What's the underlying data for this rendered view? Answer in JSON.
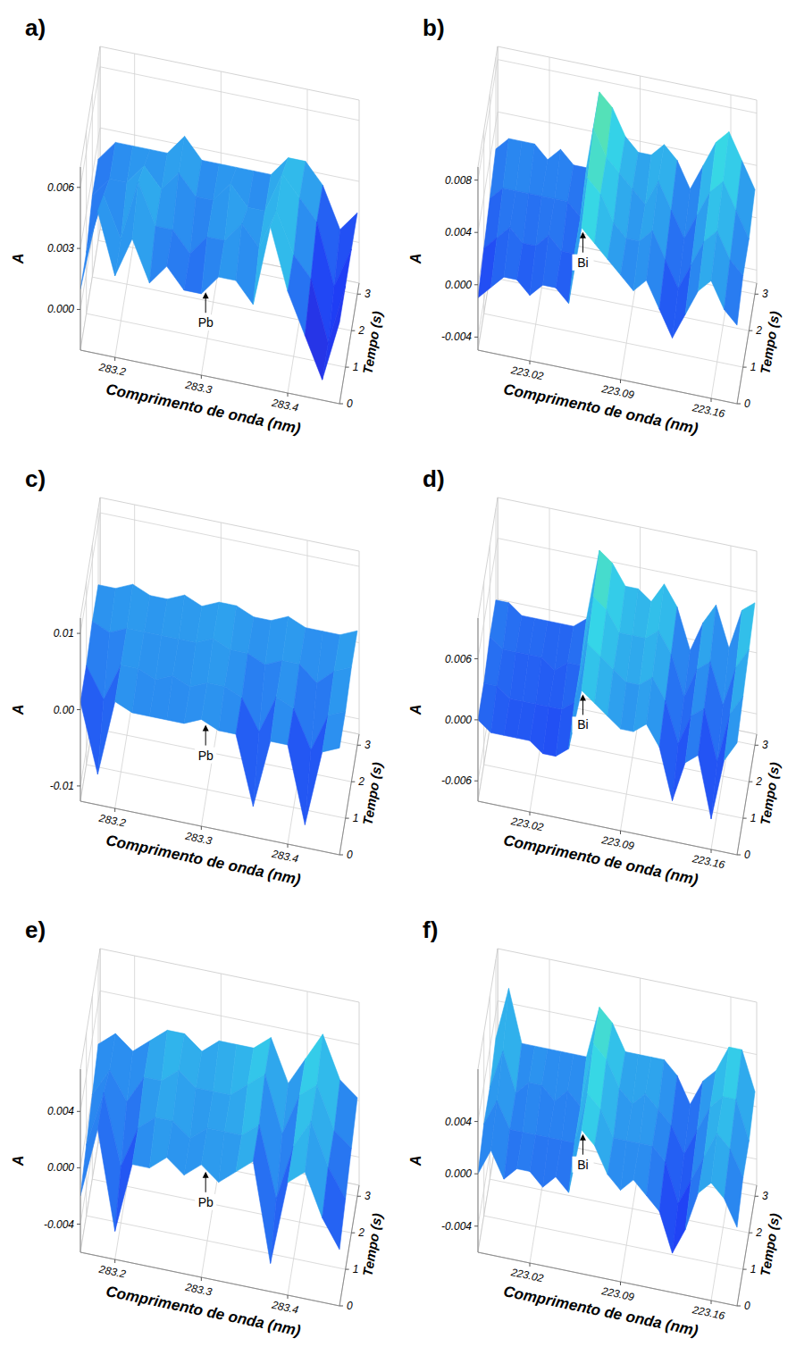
{
  "chart_data": [
    {
      "type": "surface",
      "title": "a)",
      "x_label": "Comprimento de onda (nm)",
      "y_label": "Tempo (s)",
      "z_label": "A",
      "x": [
        283.16,
        283.18,
        283.2,
        283.22,
        283.24,
        283.26,
        283.28,
        283.3,
        283.32,
        283.34,
        283.36,
        283.38,
        283.4,
        283.42,
        283.44,
        283.46
      ],
      "y": [
        0,
        1,
        2,
        3
      ],
      "z": [
        [
          0.001,
          0.005,
          0.002,
          0.004,
          0.002,
          0.003,
          0.002,
          0.002,
          0.003,
          0.003,
          0.002,
          0.006,
          0.003,
          0.001,
          -0.001,
          0.002
        ],
        [
          0.001,
          0.004,
          0.002,
          0.005,
          0.003,
          0.003,
          0.002,
          0.003,
          0.003,
          0.004,
          0.003,
          0.005,
          0.003,
          0.002,
          -0.001,
          0.002
        ],
        [
          0.002,
          0.003,
          0.003,
          0.004,
          0.003,
          0.004,
          0.003,
          0.003,
          0.004,
          0.003,
          0.003,
          0.005,
          0.004,
          0.003,
          0.0,
          0.002
        ],
        [
          0.002,
          0.003,
          0.003,
          0.003,
          0.003,
          0.004,
          0.003,
          0.003,
          0.003,
          0.003,
          0.003,
          0.004,
          0.004,
          0.003,
          0.001,
          0.002
        ]
      ],
      "xlim": [
        283.16,
        283.46
      ],
      "xticks": [
        283.2,
        283.3,
        283.4
      ],
      "ylim": [
        0,
        3.3
      ],
      "yticks": [
        0,
        1,
        2,
        3
      ],
      "zlim": [
        -0.002,
        0.007
      ],
      "zticks": [
        {
          "value": 0,
          "label": "0.000"
        },
        0.003,
        0.006
      ],
      "annotations": [
        {
          "text": "Pb",
          "x": 283.305
        }
      ]
    },
    {
      "type": "surface",
      "title": "b)",
      "x_label": "Comprimento de onda (nm)",
      "y_label": "Tempo (s)",
      "z_label": "A",
      "x": [
        222.98,
        222.99,
        223,
        223.01,
        223.02,
        223.03,
        223.04,
        223.05,
        223.06,
        223.07,
        223.08,
        223.09,
        223.1,
        223.11,
        223.12,
        223.13,
        223.14,
        223.15,
        223.16,
        223.17,
        223.18
      ],
      "y": [
        0,
        1,
        2,
        3
      ],
      "z": [
        [
          -0.001,
          0.0,
          0.001,
          0.001,
          0.0,
          0.001,
          0.001,
          0.0,
          0.006,
          0.005,
          0.004,
          0.003,
          0.002,
          0.003,
          0.001,
          -0.001,
          0.001,
          0.003,
          0.004,
          0.002,
          0.001
        ],
        [
          0.0,
          0.001,
          0.002,
          0.001,
          0.001,
          0.002,
          0.001,
          0.001,
          0.007,
          0.006,
          0.004,
          0.003,
          0.003,
          0.004,
          0.002,
          0.0,
          0.002,
          0.004,
          0.005,
          0.003,
          0.002
        ],
        [
          0.001,
          0.002,
          0.002,
          0.002,
          0.002,
          0.002,
          0.002,
          0.001,
          0.008,
          0.006,
          0.005,
          0.004,
          0.003,
          0.005,
          0.003,
          0.001,
          0.003,
          0.005,
          0.006,
          0.004,
          0.002
        ],
        [
          0.002,
          0.003,
          0.003,
          0.003,
          0.002,
          0.003,
          0.002,
          0.002,
          0.008,
          0.007,
          0.005,
          0.004,
          0.004,
          0.005,
          0.004,
          0.002,
          0.004,
          0.006,
          0.007,
          0.005,
          0.003
        ]
      ],
      "xlim": [
        222.98,
        223.18
      ],
      "xticks": [
        223.02,
        223.09,
        223.16
      ],
      "ylim": [
        0,
        3.3
      ],
      "yticks": [
        0,
        1,
        2,
        3
      ],
      "zlim": [
        -0.005,
        0.009
      ],
      "zticks": [
        -0.004,
        {
          "value": 0,
          "label": "0.000"
        },
        0.004,
        0.008
      ],
      "annotations": [
        {
          "text": "Bi",
          "x": 223.061
        }
      ]
    },
    {
      "type": "surface",
      "title": "c)",
      "x_label": "Comprimento de onda (nm)",
      "y_label": "Tempo (s)",
      "z_label": "A",
      "x": [
        283.16,
        283.18,
        283.2,
        283.22,
        283.24,
        283.26,
        283.28,
        283.3,
        283.32,
        283.34,
        283.36,
        283.38,
        283.4,
        283.42,
        283.44,
        283.46
      ],
      "y": [
        0,
        1,
        2,
        3
      ],
      "z": [
        [
          0.001,
          -0.008,
          0.002,
          0.001,
          0.001,
          0.001,
          0.001,
          0.002,
          0.001,
          0.001,
          -0.008,
          0.001,
          0.001,
          -0.009,
          0.001,
          0.002
        ],
        [
          0.001,
          -0.003,
          0.002,
          0.002,
          0.001,
          0.002,
          0.001,
          0.002,
          0.002,
          0.001,
          -0.003,
          0.002,
          0.001,
          -0.004,
          0.001,
          0.002
        ],
        [
          0.002,
          0.001,
          0.002,
          0.002,
          0.002,
          0.002,
          0.002,
          0.003,
          0.002,
          0.002,
          0.001,
          0.002,
          0.002,
          0.0,
          0.002,
          0.003
        ],
        [
          0.002,
          0.002,
          0.003,
          0.002,
          0.002,
          0.003,
          0.002,
          0.003,
          0.003,
          0.002,
          0.002,
          0.003,
          0.002,
          0.002,
          0.002,
          0.003
        ]
      ],
      "xlim": [
        283.16,
        283.46
      ],
      "xticks": [
        283.2,
        283.3,
        283.4
      ],
      "ylim": [
        0,
        3.3
      ],
      "yticks": [
        0,
        1,
        2,
        3
      ],
      "zlim": [
        -0.012,
        0.012
      ],
      "zticks": [
        -0.01,
        {
          "value": 0,
          "label": "0.00"
        },
        0.01
      ],
      "annotations": [
        {
          "text": "Pb",
          "x": 283.305
        }
      ]
    },
    {
      "type": "surface",
      "title": "d)",
      "x_label": "Comprimento de onda (nm)",
      "y_label": "Tempo (s)",
      "z_label": "A",
      "x": [
        222.98,
        222.99,
        223,
        223.01,
        223.02,
        223.03,
        223.04,
        223.05,
        223.06,
        223.07,
        223.08,
        223.09,
        223.1,
        223.11,
        223.12,
        223.13,
        223.14,
        223.15,
        223.16,
        223.17,
        223.18
      ],
      "y": [
        0,
        1,
        2,
        3
      ],
      "z": [
        [
          0.0,
          -0.001,
          -0.001,
          -0.001,
          -0.001,
          -0.002,
          -0.002,
          -0.001,
          0.005,
          0.004,
          0.003,
          0.002,
          0.002,
          0.003,
          0.001,
          -0.004,
          0.0,
          0.001,
          -0.005,
          0.001,
          0.003
        ],
        [
          0.0,
          0.0,
          -0.001,
          -0.001,
          -0.001,
          -0.001,
          -0.001,
          0.0,
          0.006,
          0.005,
          0.004,
          0.003,
          0.003,
          0.004,
          0.002,
          -0.002,
          0.001,
          0.002,
          -0.003,
          0.002,
          0.004
        ],
        [
          0.001,
          0.0,
          0.0,
          0.0,
          0.0,
          -0.001,
          0.0,
          0.0,
          0.007,
          0.006,
          0.004,
          0.004,
          0.004,
          0.005,
          0.003,
          -0.001,
          0.002,
          0.003,
          -0.001,
          0.003,
          0.005
        ],
        [
          0.001,
          0.001,
          0.0,
          0.0,
          0.0,
          0.0,
          0.0,
          0.001,
          0.008,
          0.007,
          0.005,
          0.005,
          0.004,
          0.006,
          0.004,
          0.0,
          0.003,
          0.005,
          0.001,
          0.005,
          0.006
        ]
      ],
      "xlim": [
        222.98,
        223.18
      ],
      "xticks": [
        223.02,
        223.09,
        223.16
      ],
      "ylim": [
        0,
        3.3
      ],
      "yticks": [
        0,
        1,
        2,
        3
      ],
      "zlim": [
        -0.008,
        0.01
      ],
      "zticks": [
        -0.006,
        {
          "value": 0,
          "label": "0.000"
        },
        0.006
      ],
      "annotations": [
        {
          "text": "Bi",
          "x": 223.061
        }
      ]
    },
    {
      "type": "surface",
      "title": "e)",
      "x_label": "Comprimento de onda (nm)",
      "y_label": "Tempo (s)",
      "z_label": "A",
      "x": [
        283.16,
        283.18,
        283.2,
        283.22,
        283.24,
        283.26,
        283.28,
        283.3,
        283.32,
        283.34,
        283.36,
        283.38,
        283.4,
        283.42,
        283.44,
        283.46
      ],
      "y": [
        0,
        1,
        2,
        3
      ],
      "z": [
        [
          -0.002,
          0.003,
          -0.004,
          0.001,
          0.001,
          0.002,
          0.001,
          0.002,
          0.001,
          0.002,
          0.003,
          -0.004,
          0.002,
          0.003,
          0.0,
          -0.002
        ],
        [
          -0.001,
          0.003,
          -0.002,
          0.001,
          0.002,
          0.002,
          0.001,
          0.002,
          0.002,
          0.002,
          0.003,
          -0.002,
          0.002,
          0.004,
          0.001,
          -0.001
        ],
        [
          0.0,
          0.002,
          0.0,
          0.002,
          0.002,
          0.003,
          0.002,
          0.002,
          0.002,
          0.003,
          0.004,
          0.0,
          0.003,
          0.004,
          0.001,
          0.0
        ],
        [
          0.001,
          0.002,
          0.001,
          0.002,
          0.003,
          0.003,
          0.002,
          0.003,
          0.003,
          0.003,
          0.004,
          0.001,
          0.003,
          0.005,
          0.002,
          0.001
        ]
      ],
      "xlim": [
        283.16,
        283.46
      ],
      "xticks": [
        283.2,
        283.3,
        283.4
      ],
      "ylim": [
        0,
        3.3
      ],
      "yticks": [
        0,
        1,
        2,
        3
      ],
      "zlim": [
        -0.006,
        0.007
      ],
      "zticks": [
        -0.004,
        {
          "value": 0,
          "label": "0.000"
        },
        0.004
      ],
      "annotations": [
        {
          "text": "Pb",
          "x": 283.305
        }
      ]
    },
    {
      "type": "surface",
      "title": "f)",
      "x_label": "Comprimento de onda (nm)",
      "y_label": "Tempo (s)",
      "z_label": "A",
      "x": [
        222.98,
        222.99,
        223,
        223.01,
        223.02,
        223.03,
        223.04,
        223.05,
        223.06,
        223.07,
        223.08,
        223.09,
        223.1,
        223.11,
        223.12,
        223.13,
        223.14,
        223.15,
        223.16,
        223.17,
        223.18
      ],
      "y": [
        0,
        1,
        2,
        3
      ],
      "z": [
        [
          0.0,
          0.002,
          0.0,
          0.001,
          0.001,
          0.0,
          0.001,
          0.0,
          0.005,
          0.004,
          0.002,
          0.001,
          0.002,
          0.001,
          0.0,
          -0.003,
          -0.001,
          0.002,
          0.003,
          0.002,
          0.0
        ],
        [
          0.001,
          0.003,
          0.001,
          0.001,
          0.001,
          0.001,
          0.001,
          0.001,
          0.005,
          0.004,
          0.002,
          0.002,
          0.002,
          0.002,
          0.001,
          -0.002,
          0.0,
          0.002,
          0.004,
          0.003,
          0.001
        ],
        [
          0.001,
          0.004,
          0.001,
          0.002,
          0.002,
          0.001,
          0.002,
          0.001,
          0.006,
          0.005,
          0.003,
          0.002,
          0.003,
          0.002,
          0.001,
          -0.001,
          0.001,
          0.003,
          0.004,
          0.004,
          0.001
        ],
        [
          0.002,
          0.006,
          0.002,
          0.002,
          0.002,
          0.002,
          0.002,
          0.002,
          0.006,
          0.005,
          0.003,
          0.003,
          0.003,
          0.003,
          0.002,
          0.0,
          0.002,
          0.003,
          0.005,
          0.005,
          0.002
        ]
      ],
      "xlim": [
        222.98,
        223.18
      ],
      "xticks": [
        223.02,
        223.09,
        223.16
      ],
      "ylim": [
        0,
        3.3
      ],
      "yticks": [
        0,
        1,
        2,
        3
      ],
      "zlim": [
        -0.006,
        0.008
      ],
      "zticks": [
        -0.004,
        {
          "value": 0,
          "label": "0.000"
        },
        0.004
      ],
      "annotations": [
        {
          "text": "Bi",
          "x": 223.061
        }
      ]
    }
  ]
}
